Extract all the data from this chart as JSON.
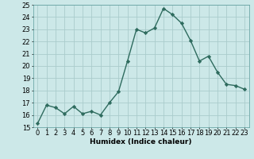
{
  "x": [
    0,
    1,
    2,
    3,
    4,
    5,
    6,
    7,
    8,
    9,
    10,
    11,
    12,
    13,
    14,
    15,
    16,
    17,
    18,
    19,
    20,
    21,
    22,
    23
  ],
  "y": [
    15.3,
    16.8,
    16.6,
    16.1,
    16.7,
    16.1,
    16.3,
    16.0,
    17.0,
    17.9,
    20.4,
    23.0,
    22.7,
    23.1,
    24.7,
    24.2,
    23.5,
    22.1,
    20.4,
    20.8,
    19.5,
    18.5,
    18.4,
    18.1
  ],
  "line_color": "#2e6b5e",
  "marker": "D",
  "marker_size": 2.2,
  "bg_color": "#cce8e8",
  "grid_color": "#aacccc",
  "xlabel": "Humidex (Indice chaleur)",
  "ylim": [
    15,
    25
  ],
  "xlim": [
    -0.5,
    23.5
  ],
  "yticks": [
    15,
    16,
    17,
    18,
    19,
    20,
    21,
    22,
    23,
    24,
    25
  ],
  "xticks": [
    0,
    1,
    2,
    3,
    4,
    5,
    6,
    7,
    8,
    9,
    10,
    11,
    12,
    13,
    14,
    15,
    16,
    17,
    18,
    19,
    20,
    21,
    22,
    23
  ],
  "xlabel_fontsize": 6.5,
  "tick_fontsize": 6,
  "line_width": 1.0
}
